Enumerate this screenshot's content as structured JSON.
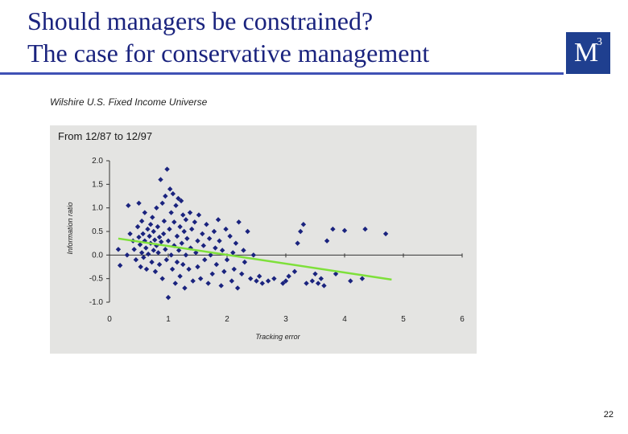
{
  "slide": {
    "title_line1": "Should managers be constrained?",
    "title_line2": "The case for conservative management",
    "logo_text": "M",
    "logo_superscript": "3",
    "universe_label": "Wilshire U.S. Fixed Income Universe",
    "page_number": "22"
  },
  "colors": {
    "title": "#1a237e",
    "rule": "#3f51b5",
    "logo_bg": "#1f3f8f",
    "points": "#1a237e",
    "trendline": "#7ee03a",
    "panel_bg": "#e4e4e2"
  },
  "chart_data": {
    "type": "scatter",
    "title": "From 12/87 to 12/97",
    "xlabel": "Tracking error",
    "ylabel": "Information ratio",
    "xlim": [
      0,
      6
    ],
    "ylim": [
      -1.0,
      2.0
    ],
    "x_ticks": [
      "0",
      "1",
      "2",
      "3",
      "4",
      "5",
      "6"
    ],
    "y_ticks": [
      "2.0",
      "1.5",
      "1.0",
      "0.5",
      "0.0",
      "-0.5",
      "-1.0"
    ],
    "grid": false,
    "legend": "none",
    "trendline": {
      "x": [
        0.15,
        4.8
      ],
      "y": [
        0.35,
        -0.52
      ]
    },
    "points": [
      {
        "x": 0.15,
        "y": 0.12
      },
      {
        "x": 0.18,
        "y": -0.22
      },
      {
        "x": 0.3,
        "y": 0.0
      },
      {
        "x": 0.32,
        "y": 1.05
      },
      {
        "x": 0.35,
        "y": 0.45
      },
      {
        "x": 0.4,
        "y": 0.3
      },
      {
        "x": 0.42,
        "y": 0.12
      },
      {
        "x": 0.45,
        "y": -0.1
      },
      {
        "x": 0.48,
        "y": 0.6
      },
      {
        "x": 0.5,
        "y": 0.38
      },
      {
        "x": 0.5,
        "y": 1.1
      },
      {
        "x": 0.52,
        "y": 0.22
      },
      {
        "x": 0.53,
        "y": -0.25
      },
      {
        "x": 0.55,
        "y": 0.05
      },
      {
        "x": 0.55,
        "y": 0.72
      },
      {
        "x": 0.57,
        "y": 0.45
      },
      {
        "x": 0.58,
        "y": -0.05
      },
      {
        "x": 0.6,
        "y": 0.3
      },
      {
        "x": 0.6,
        "y": 0.9
      },
      {
        "x": 0.62,
        "y": 0.15
      },
      {
        "x": 0.63,
        "y": -0.3
      },
      {
        "x": 0.65,
        "y": 0.55
      },
      {
        "x": 0.66,
        "y": 0.02
      },
      {
        "x": 0.68,
        "y": 0.4
      },
      {
        "x": 0.7,
        "y": 0.25
      },
      {
        "x": 0.7,
        "y": 0.65
      },
      {
        "x": 0.72,
        "y": -0.15
      },
      {
        "x": 0.73,
        "y": 0.8
      },
      {
        "x": 0.75,
        "y": 0.1
      },
      {
        "x": 0.75,
        "y": 0.5
      },
      {
        "x": 0.77,
        "y": 0.32
      },
      {
        "x": 0.78,
        "y": -0.35
      },
      {
        "x": 0.8,
        "y": 0.2
      },
      {
        "x": 0.8,
        "y": 1.0
      },
      {
        "x": 0.82,
        "y": 0.6
      },
      {
        "x": 0.83,
        "y": 0.05
      },
      {
        "x": 0.85,
        "y": 0.38
      },
      {
        "x": 0.85,
        "y": -0.2
      },
      {
        "x": 0.87,
        "y": 1.6
      },
      {
        "x": 0.88,
        "y": 0.28
      },
      {
        "x": 0.9,
        "y": 1.1
      },
      {
        "x": 0.9,
        "y": -0.5
      },
      {
        "x": 0.92,
        "y": 0.45
      },
      {
        "x": 0.93,
        "y": 0.72
      },
      {
        "x": 0.95,
        "y": 0.12
      },
      {
        "x": 0.95,
        "y": 1.25
      },
      {
        "x": 0.97,
        "y": -0.1
      },
      {
        "x": 0.98,
        "y": 1.82
      },
      {
        "x": 1.0,
        "y": 0.3
      },
      {
        "x": 1.0,
        "y": -0.9
      },
      {
        "x": 1.02,
        "y": 0.55
      },
      {
        "x": 1.03,
        "y": 1.4
      },
      {
        "x": 1.05,
        "y": 0.0
      },
      {
        "x": 1.05,
        "y": 0.9
      },
      {
        "x": 1.07,
        "y": -0.3
      },
      {
        "x": 1.08,
        "y": 1.3
      },
      {
        "x": 1.1,
        "y": 0.2
      },
      {
        "x": 1.1,
        "y": 0.7
      },
      {
        "x": 1.12,
        "y": -0.6
      },
      {
        "x": 1.13,
        "y": 1.05
      },
      {
        "x": 1.15,
        "y": 0.4
      },
      {
        "x": 1.15,
        "y": -0.15
      },
      {
        "x": 1.17,
        "y": 1.2
      },
      {
        "x": 1.18,
        "y": 0.1
      },
      {
        "x": 1.2,
        "y": 0.6
      },
      {
        "x": 1.2,
        "y": -0.45
      },
      {
        "x": 1.22,
        "y": 1.15
      },
      {
        "x": 1.23,
        "y": 0.25
      },
      {
        "x": 1.25,
        "y": 0.85
      },
      {
        "x": 1.25,
        "y": -0.2
      },
      {
        "x": 1.27,
        "y": 0.5
      },
      {
        "x": 1.28,
        "y": -0.7
      },
      {
        "x": 1.3,
        "y": 0.0
      },
      {
        "x": 1.3,
        "y": 0.75
      },
      {
        "x": 1.32,
        "y": 0.35
      },
      {
        "x": 1.35,
        "y": -0.3
      },
      {
        "x": 1.37,
        "y": 0.9
      },
      {
        "x": 1.38,
        "y": 0.15
      },
      {
        "x": 1.4,
        "y": 0.55
      },
      {
        "x": 1.42,
        "y": -0.55
      },
      {
        "x": 1.45,
        "y": 0.7
      },
      {
        "x": 1.47,
        "y": 0.05
      },
      {
        "x": 1.5,
        "y": 0.3
      },
      {
        "x": 1.5,
        "y": -0.25
      },
      {
        "x": 1.52,
        "y": 0.85
      },
      {
        "x": 1.55,
        "y": -0.5
      },
      {
        "x": 1.58,
        "y": 0.45
      },
      {
        "x": 1.6,
        "y": 0.2
      },
      {
        "x": 1.62,
        "y": -0.1
      },
      {
        "x": 1.65,
        "y": 0.65
      },
      {
        "x": 1.68,
        "y": -0.6
      },
      {
        "x": 1.7,
        "y": 0.35
      },
      {
        "x": 1.72,
        "y": 0.0
      },
      {
        "x": 1.75,
        "y": -0.4
      },
      {
        "x": 1.78,
        "y": 0.5
      },
      {
        "x": 1.8,
        "y": 0.15
      },
      {
        "x": 1.82,
        "y": -0.2
      },
      {
        "x": 1.85,
        "y": 0.75
      },
      {
        "x": 1.87,
        "y": 0.3
      },
      {
        "x": 1.9,
        "y": -0.65
      },
      {
        "x": 1.92,
        "y": 0.1
      },
      {
        "x": 1.95,
        "y": -0.35
      },
      {
        "x": 1.98,
        "y": 0.55
      },
      {
        "x": 2.0,
        "y": -0.1
      },
      {
        "x": 2.05,
        "y": 0.4
      },
      {
        "x": 2.08,
        "y": -0.55
      },
      {
        "x": 2.1,
        "y": 0.05
      },
      {
        "x": 2.12,
        "y": -0.3
      },
      {
        "x": 2.15,
        "y": 0.25
      },
      {
        "x": 2.18,
        "y": -0.7
      },
      {
        "x": 2.2,
        "y": 0.7
      },
      {
        "x": 2.25,
        "y": -0.4
      },
      {
        "x": 2.28,
        "y": 0.1
      },
      {
        "x": 2.3,
        "y": -0.15
      },
      {
        "x": 2.35,
        "y": 0.5
      },
      {
        "x": 2.4,
        "y": -0.5
      },
      {
        "x": 2.45,
        "y": 0.0
      },
      {
        "x": 2.5,
        "y": -0.55
      },
      {
        "x": 2.55,
        "y": -0.45
      },
      {
        "x": 2.6,
        "y": -0.6
      },
      {
        "x": 2.7,
        "y": -0.55
      },
      {
        "x": 2.8,
        "y": -0.5
      },
      {
        "x": 2.95,
        "y": -0.6
      },
      {
        "x": 3.0,
        "y": -0.55
      },
      {
        "x": 3.05,
        "y": -0.45
      },
      {
        "x": 3.15,
        "y": -0.35
      },
      {
        "x": 3.2,
        "y": 0.25
      },
      {
        "x": 3.25,
        "y": 0.5
      },
      {
        "x": 3.3,
        "y": 0.65
      },
      {
        "x": 3.35,
        "y": -0.6
      },
      {
        "x": 3.45,
        "y": -0.55
      },
      {
        "x": 3.5,
        "y": -0.4
      },
      {
        "x": 3.55,
        "y": -0.6
      },
      {
        "x": 3.6,
        "y": -0.5
      },
      {
        "x": 3.65,
        "y": -0.65
      },
      {
        "x": 3.7,
        "y": 0.3
      },
      {
        "x": 3.8,
        "y": 0.55
      },
      {
        "x": 3.85,
        "y": -0.4
      },
      {
        "x": 4.0,
        "y": 0.52
      },
      {
        "x": 4.1,
        "y": -0.55
      },
      {
        "x": 4.3,
        "y": -0.5
      },
      {
        "x": 4.35,
        "y": 0.55
      },
      {
        "x": 4.7,
        "y": 0.45
      }
    ]
  }
}
